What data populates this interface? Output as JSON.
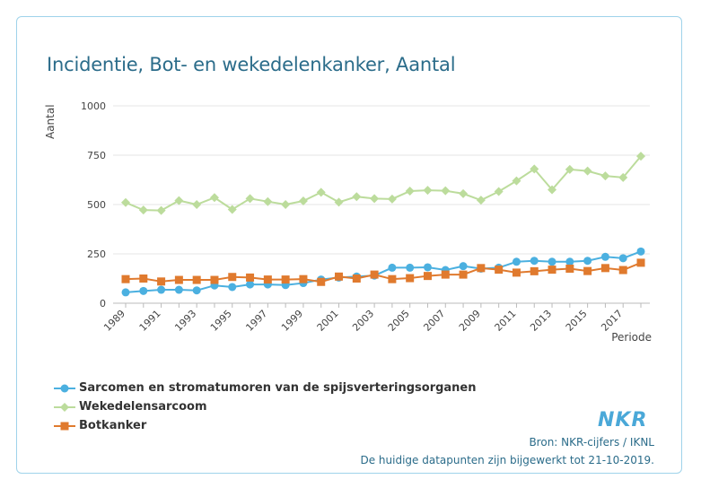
{
  "title": "Incidentie, Bot- en wekedelenkanker, Aantal",
  "logo_text": "NKR",
  "source": "Bron: NKR-cijfers / IKNL",
  "updated": "De huidige datapunten zijn bijgewerkt tot 21-10-2019.",
  "chart_data": {
    "type": "line",
    "title": "Incidentie, Bot- en wekedelenkanker, Aantal",
    "xlabel": "Periode",
    "ylabel": "Aantal",
    "ylim": [
      0,
      1000
    ],
    "yticks": [
      0,
      250,
      500,
      750,
      1000
    ],
    "xtick_labels": [
      "1989",
      "1991",
      "1993",
      "1995",
      "1997",
      "1999",
      "2001",
      "2003",
      "2005",
      "2007",
      "2009",
      "2011",
      "2013",
      "2015",
      "2017"
    ],
    "grid": "horizontal",
    "legend_position": "bottom-left",
    "x": [
      1989,
      1990,
      1991,
      1992,
      1993,
      1994,
      1995,
      1996,
      1997,
      1998,
      1999,
      2000,
      2001,
      2002,
      2003,
      2004,
      2005,
      2006,
      2007,
      2008,
      2009,
      2010,
      2011,
      2012,
      2013,
      2014,
      2015,
      2016,
      2017,
      2018
    ],
    "series": [
      {
        "name": "Sarcomen en stromatumoren van de spijsverteringsorganen",
        "color": "#4bb0e0",
        "marker": "circle",
        "values": [
          55,
          62,
          68,
          68,
          65,
          90,
          82,
          95,
          95,
          92,
          102,
          120,
          130,
          135,
          140,
          180,
          180,
          182,
          168,
          188,
          175,
          180,
          210,
          215,
          210,
          210,
          215,
          235,
          228,
          262
        ]
      },
      {
        "name": "Wekedelensarcoom",
        "color": "#bcdc9c",
        "marker": "diamond",
        "values": [
          510,
          472,
          470,
          520,
          500,
          535,
          475,
          530,
          515,
          500,
          518,
          562,
          512,
          540,
          530,
          528,
          568,
          572,
          570,
          555,
          522,
          566,
          620,
          680,
          575,
          678,
          670,
          645,
          637,
          745
        ]
      },
      {
        "name": "Botkanker",
        "color": "#e07a2e",
        "marker": "square",
        "values": [
          122,
          125,
          110,
          118,
          118,
          118,
          133,
          130,
          120,
          120,
          122,
          108,
          135,
          125,
          145,
          122,
          127,
          138,
          145,
          145,
          178,
          170,
          155,
          162,
          170,
          175,
          163,
          178,
          168,
          205
        ]
      }
    ]
  }
}
